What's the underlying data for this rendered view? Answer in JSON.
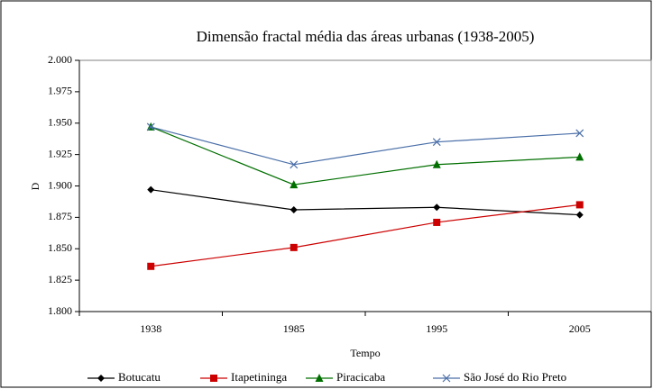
{
  "chart_data": {
    "type": "line",
    "title": "Dimensão fractal média das áreas urbanas (1938-2005)",
    "x_label": "Tempo",
    "y_label": "D",
    "categories": [
      "1938",
      "1985",
      "1995",
      "2005"
    ],
    "series": [
      {
        "name": "Botucatu",
        "color": "#000000",
        "marker": "diamond",
        "values": [
          1.897,
          1.881,
          1.883,
          1.877
        ]
      },
      {
        "name": "Itapetininga",
        "color": "#cc0000",
        "marker": "square",
        "values": [
          1.836,
          1.851,
          1.871,
          1.885
        ]
      },
      {
        "name": "Piracicaba",
        "color": "#006f00",
        "marker": "triangle",
        "values": [
          1.947,
          1.901,
          1.917,
          1.923
        ]
      },
      {
        "name": "São José do Rio Preto",
        "color": "#4a6fa8",
        "marker": "x",
        "values": [
          1.947,
          1.917,
          1.935,
          1.942
        ]
      }
    ],
    "ylim": [
      1.8,
      2.0
    ],
    "yticks": [
      {
        "value": 1.8,
        "label": "1.800"
      },
      1.825,
      {
        "value": 1.85,
        "label": "1.850"
      },
      1.875,
      {
        "value": 1.9,
        "label": "1.900"
      },
      1.925,
      {
        "value": 1.95,
        "label": "1.950"
      },
      1.975,
      {
        "value": 2.0,
        "label": "2.000"
      }
    ],
    "legend": "bottom"
  }
}
